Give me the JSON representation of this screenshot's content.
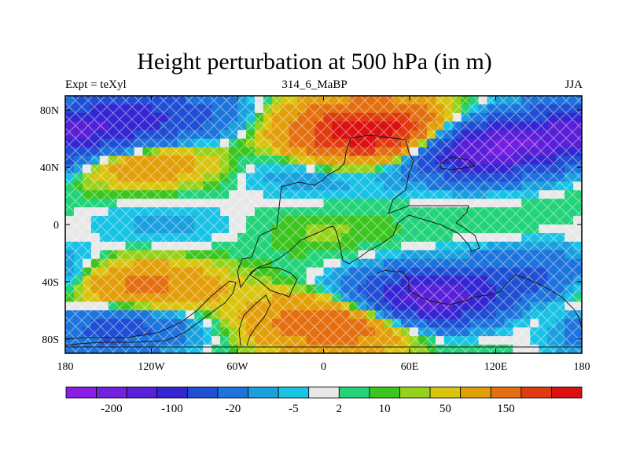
{
  "chart_data": {
    "type": "heatmap",
    "title": "Height perturbation at 500 hPa (in m)",
    "left_label": "Expt = teXyl",
    "center_label": "314_6_MaBP",
    "right_label": "JJA",
    "x_ticks": [
      "180",
      "120W",
      "60W",
      "0",
      "60E",
      "120E",
      "180"
    ],
    "y_ticks": [
      "80N",
      "40N",
      "0",
      "40S",
      "80S"
    ],
    "xlim": [
      -180,
      180
    ],
    "ylim": [
      -90,
      90
    ],
    "colorbar": {
      "colors": [
        "#8a1ee6",
        "#7320e0",
        "#5a1fd8",
        "#3426d2",
        "#1f4fd4",
        "#1d74dc",
        "#1aa0de",
        "#18c3e6",
        "#e8e8e8",
        "#22d37a",
        "#3cc51e",
        "#97d21a",
        "#d9c40e",
        "#e39f0a",
        "#e46f10",
        "#e03a10",
        "#dc1010"
      ],
      "tick_labels": [
        "-200",
        "-100",
        "-20",
        "-5",
        "2",
        "10",
        "50",
        "150"
      ]
    },
    "field_anomalies": [
      {
        "lon": -130,
        "lat": 47,
        "value": 55
      },
      {
        "lon": 40,
        "lat": 60,
        "value": 180
      },
      {
        "lon": 30,
        "lat": 72,
        "value": 70
      },
      {
        "lon": -155,
        "lat": 68,
        "value": -110
      },
      {
        "lon": -110,
        "lat": 77,
        "value": -60
      },
      {
        "lon": 95,
        "lat": 52,
        "value": -175
      },
      {
        "lon": 150,
        "lat": 58,
        "value": -120
      },
      {
        "lon": -4,
        "lat": 40,
        "value": -25
      },
      {
        "lon": -110,
        "lat": 0,
        "value": -12
      },
      {
        "lon": -130,
        "lat": -45,
        "value": 70
      },
      {
        "lon": 10,
        "lat": -68,
        "value": 100
      },
      {
        "lon": 75,
        "lat": -52,
        "value": -190
      },
      {
        "lon": 150,
        "lat": -38,
        "value": -60
      },
      {
        "lon": 155,
        "lat": -60,
        "value": 40
      },
      {
        "lon": -150,
        "lat": -70,
        "value": -80
      },
      {
        "lon": 0,
        "lat": -5,
        "value": 6
      }
    ]
  }
}
